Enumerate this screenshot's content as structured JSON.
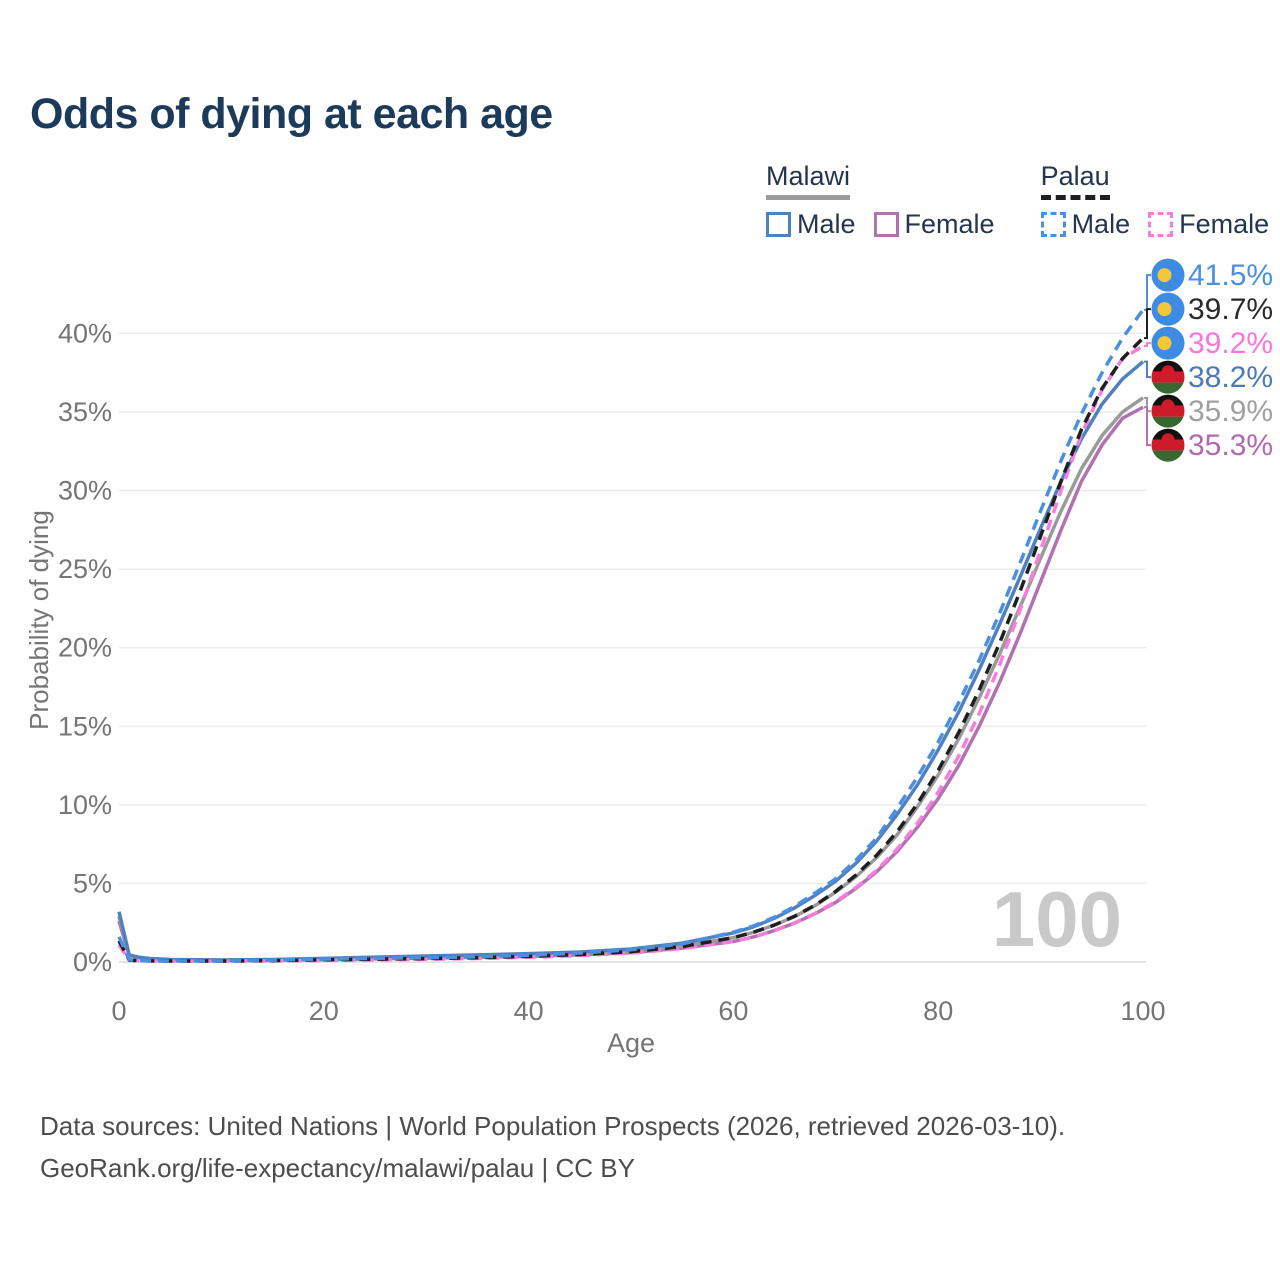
{
  "header": {
    "title": "Odds of dying at each age"
  },
  "legend": {
    "groups": [
      {
        "country": "Malawi",
        "series_ref": "malawi-total",
        "items": [
          {
            "label": "Male",
            "series_ref": "malawi-male"
          },
          {
            "label": "Female",
            "series_ref": "malawi-female"
          }
        ]
      },
      {
        "country": "Palau",
        "series_ref": "palau-total",
        "items": [
          {
            "label": "Male",
            "series_ref": "palau-male"
          },
          {
            "label": "Female",
            "series_ref": "palau-female"
          }
        ]
      }
    ]
  },
  "chart_data": {
    "type": "line",
    "title": "Odds of dying at each age",
    "xlabel": "Age",
    "ylabel": "Probability of dying",
    "xlim": [
      0,
      100
    ],
    "ylim": [
      0,
      44
    ],
    "grid": "horizontal",
    "legend_position": "top-right",
    "age_watermark": "100",
    "x_ticks": [
      0,
      20,
      40,
      60,
      80,
      100
    ],
    "y_ticks": {
      "values": [
        0,
        5,
        10,
        15,
        20,
        25,
        30,
        35,
        40
      ],
      "labels": [
        "0%",
        "5%",
        "10%",
        "15%",
        "20%",
        "25%",
        "30%",
        "35%",
        "40%"
      ]
    },
    "ages": [
      0,
      1,
      2,
      3,
      5,
      10,
      15,
      20,
      25,
      30,
      35,
      40,
      45,
      50,
      55,
      60,
      62,
      64,
      66,
      68,
      70,
      72,
      74,
      76,
      78,
      80,
      82,
      84,
      86,
      88,
      90,
      92,
      94,
      96,
      98,
      100
    ],
    "series": [
      {
        "id": "palau-male",
        "name": "Palau Male",
        "color": "#4b8fe2",
        "label_color": "#4b8fe2",
        "dash": true,
        "flag": "palau",
        "end_label": "41.5%",
        "values": [
          1.6,
          0.14,
          0.09,
          0.07,
          0.06,
          0.06,
          0.11,
          0.18,
          0.23,
          0.27,
          0.33,
          0.43,
          0.57,
          0.78,
          1.15,
          1.9,
          2.3,
          2.85,
          3.55,
          4.4,
          5.3,
          6.5,
          7.9,
          9.8,
          11.8,
          14.0,
          16.5,
          19.2,
          22.2,
          25.4,
          28.7,
          31.9,
          34.9,
          37.5,
          39.7,
          41.5
        ]
      },
      {
        "id": "palau-total",
        "name": "Palau",
        "color": "#1f1f1f",
        "label_color": "#2b2b2b",
        "dash": true,
        "flag": "palau",
        "end_label": "39.7%",
        "values": [
          1.35,
          0.12,
          0.08,
          0.07,
          0.06,
          0.06,
          0.09,
          0.14,
          0.18,
          0.22,
          0.27,
          0.36,
          0.48,
          0.66,
          0.98,
          1.55,
          1.9,
          2.35,
          2.92,
          3.62,
          4.5,
          5.55,
          6.8,
          8.3,
          10.1,
          12.2,
          14.6,
          17.3,
          20.3,
          23.6,
          27.1,
          30.6,
          33.9,
          36.5,
          38.4,
          39.7
        ]
      },
      {
        "id": "palau-female",
        "name": "Palau Female",
        "color": "#f87ddd",
        "label_color": "#fb75da",
        "dash": true,
        "flag": "palau",
        "end_label": "39.2%",
        "values": [
          1.1,
          0.1,
          0.07,
          0.06,
          0.05,
          0.05,
          0.07,
          0.1,
          0.13,
          0.17,
          0.22,
          0.3,
          0.41,
          0.57,
          0.86,
          1.3,
          1.6,
          2.0,
          2.5,
          3.1,
          3.85,
          4.75,
          5.85,
          7.2,
          8.85,
          10.8,
          13.1,
          15.8,
          18.9,
          22.4,
          26.2,
          30.0,
          33.6,
          36.4,
          38.4,
          39.2
        ]
      },
      {
        "id": "malawi-male",
        "name": "Malawi Male",
        "color": "#5081bf",
        "label_color": "#4d7ab5",
        "dash": false,
        "flag": "malawi",
        "end_label": "38.2%",
        "values": [
          3.2,
          0.45,
          0.3,
          0.22,
          0.16,
          0.13,
          0.16,
          0.23,
          0.31,
          0.38,
          0.45,
          0.53,
          0.64,
          0.83,
          1.2,
          1.85,
          2.25,
          2.78,
          3.45,
          4.25,
          5.15,
          6.3,
          7.7,
          9.4,
          11.3,
          13.5,
          15.9,
          18.6,
          21.5,
          24.5,
          27.6,
          30.6,
          33.3,
          35.5,
          37.1,
          38.2
        ]
      },
      {
        "id": "malawi-total",
        "name": "Malawi",
        "color": "#9a9a9a",
        "label_color": "#a0a0a0",
        "dash": false,
        "flag": "malawi",
        "end_label": "35.9%",
        "values": [
          2.9,
          0.42,
          0.28,
          0.21,
          0.15,
          0.12,
          0.14,
          0.19,
          0.25,
          0.31,
          0.37,
          0.44,
          0.54,
          0.71,
          1.02,
          1.55,
          1.9,
          2.35,
          2.9,
          3.6,
          4.45,
          5.45,
          6.65,
          8.1,
          9.9,
          11.9,
          14.2,
          16.8,
          19.6,
          22.6,
          25.7,
          28.7,
          31.4,
          33.5,
          35.0,
          35.9
        ]
      },
      {
        "id": "malawi-female",
        "name": "Malawi Female",
        "color": "#b271b0",
        "label_color": "#b168af",
        "dash": false,
        "flag": "malawi",
        "end_label": "35.3%",
        "values": [
          2.6,
          0.4,
          0.26,
          0.19,
          0.14,
          0.11,
          0.12,
          0.15,
          0.2,
          0.25,
          0.3,
          0.36,
          0.45,
          0.6,
          0.88,
          1.3,
          1.6,
          2.0,
          2.48,
          3.08,
          3.8,
          4.7,
          5.75,
          7.05,
          8.6,
          10.4,
          12.5,
          15.0,
          17.8,
          20.9,
          24.2,
          27.5,
          30.6,
          32.9,
          34.6,
          35.3
        ]
      }
    ],
    "colors": {
      "title": "#1c3a5a",
      "axis_text": "#757575",
      "grid": "#ececec",
      "baseline": "#dcdcdc",
      "watermark": "#c9c9c9",
      "malawi_underline": "#9a9a9a",
      "palau_underline": "#1f1f1f",
      "palau_flag_blue": "#3d8be3",
      "palau_flag_yellow": "#f2c83a",
      "malawi_flag_black": "#101010",
      "malawi_flag_red": "#cd1b2a",
      "malawi_flag_green": "#3a662f"
    }
  },
  "footer": {
    "line1": "Data sources: United Nations | World Population Prospects (2026, retrieved 2026-03-10).",
    "line2": "GeoRank.org/life-expectancy/malawi/palau | CC BY"
  }
}
